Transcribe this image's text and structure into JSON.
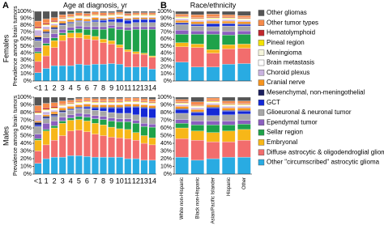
{
  "panel_labels": [
    "A",
    "B"
  ],
  "row_labels": [
    "Females",
    "Males"
  ],
  "chart_data": [
    {
      "type": "bar",
      "stacked": true,
      "title": "Age at diagnosis, yr",
      "ylabel": "Prevalence among brain tumors",
      "categories": [
        "<1",
        "1",
        "2",
        "3",
        "4",
        "5",
        "6",
        "7",
        "8",
        "9",
        "10",
        "11",
        "12",
        "13",
        "14"
      ],
      "ylim": [
        0,
        100
      ],
      "yticks": [
        {
          "value": 0,
          "label": "0%"
        },
        {
          "value": 10,
          "label": "10%"
        },
        {
          "value": 20,
          "label": "20%"
        },
        {
          "value": 30,
          "label": "30%"
        },
        {
          "value": 40,
          "label": "40%"
        },
        {
          "value": 50,
          "label": "50%"
        },
        {
          "value": 60,
          "label": "60%"
        },
        {
          "value": 70,
          "label": "70%"
        },
        {
          "value": 80,
          "label": "80%"
        },
        {
          "value": 90,
          "label": "90%"
        },
        {
          "value": 100,
          "label": "100%"
        }
      ],
      "series": [
        {
          "name": "Other \"circumscribed\" astrocytic glioma",
          "color": "#29abe2",
          "values": [
            12,
            18,
            22,
            22,
            22,
            24,
            23,
            24,
            24,
            25,
            24,
            20,
            20,
            20,
            17
          ]
        },
        {
          "name": "Diffuse astrocytic & oligodendroglial glioma",
          "color": "#f26d6d",
          "values": [
            16,
            18,
            26,
            36,
            40,
            38,
            37,
            35,
            31,
            28,
            24,
            22,
            19,
            18,
            17
          ]
        },
        {
          "name": "Embryonal",
          "color": "#f7b718",
          "values": [
            12,
            15,
            10,
            8,
            7,
            7,
            6,
            5,
            5,
            5,
            4,
            3,
            3,
            2,
            2
          ]
        },
        {
          "name": "Sellar region",
          "color": "#1fa24a",
          "values": [
            2,
            3,
            4,
            3,
            4,
            6,
            8,
            10,
            14,
            18,
            22,
            28,
            32,
            34,
            38
          ]
        },
        {
          "name": "Ependymal tumor",
          "color": "#8b5fbf",
          "values": [
            6,
            8,
            6,
            5,
            4,
            4,
            4,
            4,
            4,
            4,
            4,
            4,
            4,
            4,
            4
          ]
        },
        {
          "name": "Glioeuronal & neuronal tumor",
          "color": "#a6a6a6",
          "values": [
            10,
            6,
            6,
            6,
            6,
            6,
            6,
            7,
            6,
            5,
            6,
            5,
            6,
            6,
            6
          ]
        },
        {
          "name": "GCT",
          "color": "#1428d6",
          "values": [
            2,
            1,
            1,
            1,
            1,
            1,
            1,
            2,
            3,
            3,
            5,
            5,
            4,
            4,
            4
          ]
        },
        {
          "name": "Mesenchymal, non-meningothelial",
          "color": "#1b1f5e",
          "values": [
            3,
            2,
            2,
            2,
            1,
            1,
            1,
            1,
            1,
            1,
            1,
            1,
            1,
            1,
            1
          ]
        },
        {
          "name": "Cranial nerve",
          "color": "#f7941d",
          "values": [
            2,
            3,
            3,
            3,
            3,
            3,
            3,
            3,
            2,
            2,
            2,
            2,
            2,
            2,
            2
          ]
        },
        {
          "name": "Choroid plexus",
          "color": "#c9b3e0",
          "values": [
            8,
            4,
            2,
            1,
            1,
            1,
            1,
            1,
            1,
            1,
            1,
            1,
            1,
            1,
            1
          ]
        },
        {
          "name": "Brain metastasis",
          "color": "#ffffff",
          "values": [
            1,
            1,
            1,
            1,
            1,
            1,
            1,
            1,
            1,
            1,
            1,
            1,
            1,
            1,
            1
          ]
        },
        {
          "name": "Meningioma",
          "color": "#f5f5dc",
          "values": [
            1,
            1,
            1,
            1,
            1,
            1,
            1,
            1,
            1,
            1,
            1,
            1,
            1,
            1,
            1
          ]
        },
        {
          "name": "Pineal region",
          "color": "#f2e200",
          "values": [
            1,
            1,
            1,
            1,
            1,
            1,
            1,
            1,
            1,
            1,
            1,
            1,
            1,
            1,
            1
          ]
        },
        {
          "name": "Hematolymphoid",
          "color": "#c1272d",
          "values": [
            2,
            2,
            2,
            1,
            1,
            1,
            1,
            1,
            1,
            1,
            1,
            1,
            1,
            1,
            1
          ]
        },
        {
          "name": "Other tumor types",
          "color": "#f58a4b",
          "values": [
            8,
            6,
            4,
            4,
            3,
            3,
            3,
            3,
            3,
            2,
            2,
            2,
            2,
            2,
            2
          ]
        },
        {
          "name": "Other gliomas",
          "color": "#555555",
          "values": [
            14,
            11,
            9,
            5,
            4,
            2,
            3,
            1,
            2,
            2,
            3,
            3,
            2,
            2,
            2
          ]
        }
      ]
    },
    {
      "type": "bar",
      "stacked": true,
      "title": "Race/ethnicity",
      "categories": [
        null,
        null,
        null,
        null,
        null
      ],
      "ylim": [
        0,
        100
      ],
      "yticks": [
        {
          "value": 0,
          "label": "0%"
        },
        {
          "value": 10,
          "label": "10%"
        },
        {
          "value": 20,
          "label": "20%"
        },
        {
          "value": 30,
          "label": "30%"
        },
        {
          "value": 40,
          "label": "40%"
        },
        {
          "value": 50,
          "label": "50%"
        },
        {
          "value": 60,
          "label": "60%"
        },
        {
          "value": 70,
          "label": "70%"
        },
        {
          "value": 80,
          "label": "80%"
        },
        {
          "value": 90,
          "label": "90%"
        },
        {
          "value": 100,
          "label": "100%"
        }
      ],
      "series": [
        {
          "values": [
            27,
            20,
            20,
            24,
            25
          ]
        },
        {
          "values": [
            22,
            28,
            20,
            22,
            22
          ]
        },
        {
          "values": [
            6,
            5,
            5,
            6,
            6
          ]
        },
        {
          "values": [
            12,
            14,
            22,
            14,
            14
          ]
        },
        {
          "values": [
            6,
            5,
            5,
            5,
            5
          ]
        },
        {
          "values": [
            8,
            7,
            6,
            8,
            7
          ]
        },
        {
          "values": [
            2,
            2,
            4,
            3,
            2
          ]
        },
        {
          "values": [
            1,
            1,
            1,
            1,
            1
          ]
        },
        {
          "values": [
            3,
            3,
            3,
            3,
            3
          ]
        },
        {
          "values": [
            2,
            2,
            2,
            2,
            2
          ]
        },
        {
          "values": [
            1,
            1,
            1,
            1,
            1
          ]
        },
        {
          "values": [
            1,
            1,
            1,
            1,
            1
          ]
        },
        {
          "values": [
            1,
            1,
            1,
            1,
            1
          ]
        },
        {
          "values": [
            1,
            1,
            1,
            1,
            1
          ]
        },
        {
          "values": [
            3,
            4,
            4,
            3,
            3
          ]
        },
        {
          "values": [
            4,
            5,
            4,
            5,
            6
          ]
        }
      ]
    },
    {
      "type": "bar",
      "stacked": true,
      "ylabel": "Prevalence among brain tumors",
      "categories": [
        "<1",
        "1",
        "2",
        "3",
        "4",
        "5",
        "6",
        "7",
        "8",
        "9",
        "10",
        "11",
        "12",
        "13",
        "14"
      ],
      "ylim": [
        0,
        100
      ],
      "yticks": [
        {
          "value": 0,
          "label": "0%"
        },
        {
          "value": 10,
          "label": "10%"
        },
        {
          "value": 20,
          "label": "20%"
        },
        {
          "value": 30,
          "label": "30%"
        },
        {
          "value": 40,
          "label": "40%"
        },
        {
          "value": 50,
          "label": "50%"
        },
        {
          "value": 60,
          "label": "60%"
        },
        {
          "value": 70,
          "label": "70%"
        },
        {
          "value": 80,
          "label": "80%"
        },
        {
          "value": 90,
          "label": "90%"
        },
        {
          "value": 100,
          "label": "100%"
        }
      ],
      "series": [
        {
          "values": [
            14,
            20,
            22,
            22,
            24,
            24,
            23,
            22,
            22,
            22,
            22,
            20,
            20,
            18,
            18
          ]
        },
        {
          "values": [
            16,
            18,
            22,
            28,
            32,
            33,
            32,
            30,
            28,
            26,
            25,
            26,
            24,
            22,
            20
          ]
        },
        {
          "values": [
            14,
            18,
            16,
            16,
            14,
            14,
            14,
            14,
            14,
            13,
            12,
            12,
            10,
            10,
            9
          ]
        },
        {
          "values": [
            2,
            2,
            3,
            3,
            3,
            4,
            5,
            6,
            7,
            8,
            9,
            10,
            12,
            12,
            14
          ]
        },
        {
          "values": [
            6,
            8,
            6,
            5,
            4,
            4,
            4,
            4,
            4,
            4,
            4,
            4,
            4,
            4,
            4
          ]
        },
        {
          "values": [
            10,
            6,
            6,
            6,
            6,
            6,
            7,
            7,
            7,
            7,
            7,
            7,
            7,
            8,
            8
          ]
        },
        {
          "values": [
            2,
            1,
            1,
            1,
            1,
            1,
            2,
            3,
            4,
            6,
            7,
            8,
            10,
            12,
            12
          ]
        },
        {
          "values": [
            3,
            2,
            2,
            2,
            1,
            1,
            1,
            1,
            1,
            1,
            1,
            1,
            1,
            1,
            1
          ]
        },
        {
          "values": [
            2,
            2,
            3,
            3,
            3,
            3,
            3,
            3,
            3,
            3,
            3,
            3,
            3,
            3,
            3
          ]
        },
        {
          "values": [
            8,
            4,
            2,
            1,
            1,
            1,
            1,
            1,
            1,
            1,
            1,
            1,
            1,
            1,
            1
          ]
        },
        {
          "values": [
            1,
            1,
            1,
            1,
            1,
            1,
            1,
            1,
            1,
            1,
            1,
            1,
            1,
            1,
            1
          ]
        },
        {
          "values": [
            1,
            1,
            1,
            1,
            1,
            1,
            1,
            1,
            1,
            1,
            1,
            1,
            1,
            1,
            1
          ]
        },
        {
          "values": [
            1,
            1,
            1,
            1,
            1,
            1,
            1,
            1,
            1,
            1,
            1,
            1,
            1,
            1,
            1
          ]
        },
        {
          "values": [
            2,
            2,
            2,
            1,
            1,
            1,
            1,
            1,
            1,
            1,
            1,
            1,
            1,
            1,
            1
          ]
        },
        {
          "values": [
            7,
            6,
            5,
            4,
            3,
            3,
            3,
            3,
            3,
            3,
            3,
            3,
            3,
            3,
            3
          ]
        },
        {
          "values": [
            11,
            8,
            7,
            5,
            3,
            2,
            1,
            2,
            2,
            2,
            2,
            1,
            1,
            2,
            3
          ]
        }
      ]
    },
    {
      "type": "bar",
      "stacked": true,
      "categories": [
        "White non-Hispanic",
        "Black non-Hispanic",
        "Asian/Pacific Islander",
        "Hispanic",
        "Other"
      ],
      "ylim": [
        0,
        100
      ],
      "yticks": [
        {
          "value": 0,
          "label": "0%"
        },
        {
          "value": 10,
          "label": "10%"
        },
        {
          "value": 20,
          "label": "20%"
        },
        {
          "value": 30,
          "label": "30%"
        },
        {
          "value": 40,
          "label": "40%"
        },
        {
          "value": 50,
          "label": "50%"
        },
        {
          "value": 60,
          "label": "60%"
        },
        {
          "value": 70,
          "label": "70%"
        },
        {
          "value": 80,
          "label": "80%"
        },
        {
          "value": 90,
          "label": "90%"
        },
        {
          "value": 100,
          "label": "100%"
        }
      ],
      "series": [
        {
          "values": [
            22,
            18,
            20,
            22,
            22
          ]
        },
        {
          "values": [
            24,
            26,
            22,
            20,
            22
          ]
        },
        {
          "values": [
            14,
            12,
            12,
            14,
            14
          ]
        },
        {
          "values": [
            6,
            8,
            10,
            8,
            7
          ]
        },
        {
          "values": [
            5,
            5,
            5,
            5,
            5
          ]
        },
        {
          "values": [
            8,
            7,
            7,
            8,
            8
          ]
        },
        {
          "values": [
            5,
            4,
            10,
            5,
            4
          ]
        },
        {
          "values": [
            1,
            1,
            1,
            1,
            1
          ]
        },
        {
          "values": [
            3,
            3,
            3,
            3,
            3
          ]
        },
        {
          "values": [
            2,
            2,
            2,
            2,
            2
          ]
        },
        {
          "values": [
            1,
            1,
            1,
            1,
            1
          ]
        },
        {
          "values": [
            1,
            1,
            1,
            1,
            1
          ]
        },
        {
          "values": [
            1,
            1,
            1,
            1,
            1
          ]
        },
        {
          "values": [
            1,
            1,
            1,
            1,
            1
          ]
        },
        {
          "values": [
            3,
            4,
            3,
            3,
            3
          ]
        },
        {
          "values": [
            3,
            6,
            1,
            5,
            5
          ]
        }
      ]
    }
  ]
}
